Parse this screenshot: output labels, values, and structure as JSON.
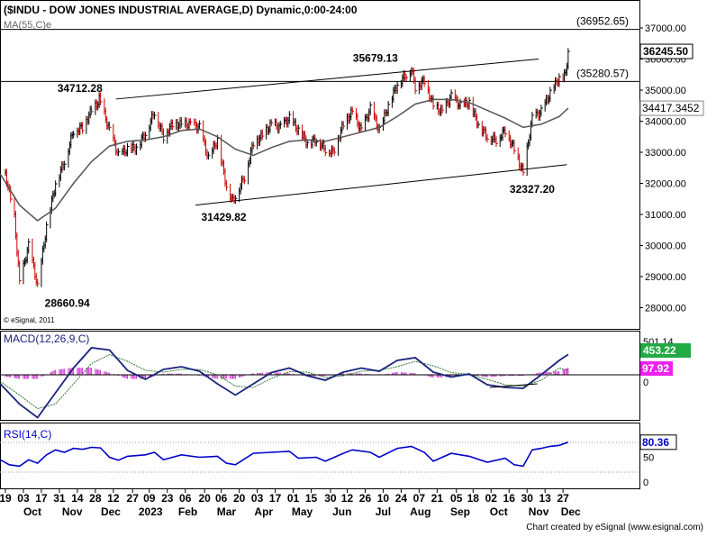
{
  "title": "($INDU - DOW JONES INDUSTRIAL AVERAGE,D) Dynamic,0:00-24:00",
  "ma_label": "MA(55,C)e",
  "copyright_small": "© eSignal, 2011",
  "footer": "Chart created by eSignal (www.esignal.com)",
  "colors": {
    "price_bar": "#000000",
    "bar_down": "#cc0000",
    "ma": "#555555",
    "macd": "#1a237e",
    "signal": "#2e7d32",
    "histogram": "#cc33cc",
    "rsi": "#0000cc",
    "last_label_bg": "#ffffff",
    "macd_label_bg": "#22aa44",
    "signal_label_bg": "#ee22ee"
  },
  "price_panel": {
    "y_ticks": [
      "37000.00",
      "36000.00",
      "35000.00",
      "34000.00",
      "33000.00",
      "32000.00",
      "31000.00",
      "30000.00",
      "29000.00",
      "28000.00"
    ],
    "levels": [
      {
        "value": 36952.65,
        "label": "(36952.65)"
      },
      {
        "value": 35280.57,
        "label": "(35280.57)"
      }
    ],
    "last_price_label": "36245.50",
    "ma_value_label": "34417.3452",
    "annotations": [
      "34712.28",
      "35679.13",
      "31429.82",
      "32327.20",
      "28660.94"
    ],
    "trendlines": [
      {
        "from": [
          "Dec 14",
          34712
        ],
        "to": [
          "Nov 08",
          36000
        ]
      },
      {
        "from": [
          "Feb 14",
          31300
        ],
        "to": [
          "Nov 30",
          32600
        ]
      }
    ]
  },
  "macd_panel": {
    "label": "MACD(12,26,9,C)",
    "macd_value": "453.22",
    "signal_value": "97.92",
    "macd_top_label": "501.14",
    "zero_label": "0"
  },
  "rsi_panel": {
    "label": "RSI(14,C)",
    "value": "80.36",
    "y_ticks": [
      "50",
      "0"
    ]
  },
  "x_axis": {
    "day_ticks": [
      "19",
      "03",
      "17",
      "31",
      "14",
      "28",
      "12",
      "27",
      "09",
      "23",
      "06",
      "20",
      "06",
      "20",
      "03",
      "17",
      "01",
      "15",
      "30",
      "12",
      "26",
      "10",
      "24",
      "07",
      "21",
      "05",
      "18",
      "02",
      "16",
      "30",
      "13",
      "27"
    ],
    "month_ticks": [
      "Oct",
      "Nov",
      "Dec",
      "2023",
      "Feb",
      "Mar",
      "Apr",
      "May",
      "Jun",
      "Jul",
      "Aug",
      "Sep",
      "Oct",
      "Nov",
      "Dec"
    ]
  },
  "chart_data": {
    "type": "line",
    "title": "($INDU - DOW JONES INDUSTRIAL AVERAGE,D) Dynamic,0:00-24:00",
    "x_range": [
      "2022-09-15",
      "2023-12-01"
    ],
    "ylim": [
      27500,
      37500
    ],
    "series": [
      {
        "name": "$INDU",
        "points": [
          [
            "2022-09-19",
            32300
          ],
          [
            "2022-09-26",
            30900
          ],
          [
            "2022-09-30",
            28800
          ],
          [
            "2022-10-07",
            30000
          ],
          [
            "2022-10-12",
            29100
          ],
          [
            "2022-10-14",
            28660
          ],
          [
            "2022-10-21",
            30600
          ],
          [
            "2022-10-28",
            32000
          ],
          [
            "2022-11-04",
            32700
          ],
          [
            "2022-11-11",
            33700
          ],
          [
            "2022-11-18",
            33800
          ],
          [
            "2022-11-25",
            34350
          ],
          [
            "2022-11-30",
            34600
          ],
          [
            "2022-12-01",
            34712
          ],
          [
            "2022-12-09",
            33700
          ],
          [
            "2022-12-16",
            32900
          ],
          [
            "2022-12-23",
            33100
          ],
          [
            "2022-12-30",
            33150
          ],
          [
            "2023-01-06",
            33600
          ],
          [
            "2023-01-13",
            34300
          ],
          [
            "2023-01-20",
            33500
          ],
          [
            "2023-01-27",
            33900
          ],
          [
            "2023-02-03",
            33900
          ],
          [
            "2023-02-10",
            33900
          ],
          [
            "2023-02-17",
            33800
          ],
          [
            "2023-02-24",
            32800
          ],
          [
            "2023-03-03",
            33400
          ],
          [
            "2023-03-10",
            31900
          ],
          [
            "2023-03-15",
            31429
          ],
          [
            "2023-03-24",
            32200
          ],
          [
            "2023-03-31",
            33300
          ],
          [
            "2023-04-06",
            33500
          ],
          [
            "2023-04-14",
            33900
          ],
          [
            "2023-04-21",
            33800
          ],
          [
            "2023-04-28",
            34100
          ],
          [
            "2023-05-05",
            33700
          ],
          [
            "2023-05-12",
            33300
          ],
          [
            "2023-05-19",
            33400
          ],
          [
            "2023-05-26",
            33100
          ],
          [
            "2023-06-01",
            33000
          ],
          [
            "2023-06-09",
            33900
          ],
          [
            "2023-06-16",
            34300
          ],
          [
            "2023-06-23",
            33700
          ],
          [
            "2023-06-30",
            34400
          ],
          [
            "2023-07-07",
            33700
          ],
          [
            "2023-07-14",
            34500
          ],
          [
            "2023-07-21",
            35200
          ],
          [
            "2023-07-28",
            35500
          ],
          [
            "2023-08-01",
            35679
          ],
          [
            "2023-08-04",
            35100
          ],
          [
            "2023-08-11",
            35300
          ],
          [
            "2023-08-18",
            34500
          ],
          [
            "2023-08-25",
            34300
          ],
          [
            "2023-09-01",
            34800
          ],
          [
            "2023-09-08",
            34500
          ],
          [
            "2023-09-15",
            34600
          ],
          [
            "2023-09-22",
            33900
          ],
          [
            "2023-09-29",
            33500
          ],
          [
            "2023-10-06",
            33400
          ],
          [
            "2023-10-13",
            33700
          ],
          [
            "2023-10-20",
            33100
          ],
          [
            "2023-10-27",
            32327
          ],
          [
            "2023-11-03",
            34100
          ],
          [
            "2023-11-10",
            34300
          ],
          [
            "2023-11-17",
            34900
          ],
          [
            "2023-11-24",
            35400
          ],
          [
            "2023-11-29",
            35500
          ],
          [
            "2023-12-01",
            36245
          ]
        ]
      },
      {
        "name": "MA(55,C)e",
        "points": [
          [
            "2022-09-15",
            32300
          ],
          [
            "2022-09-30",
            31300
          ],
          [
            "2022-10-14",
            30800
          ],
          [
            "2022-10-28",
            31200
          ],
          [
            "2022-11-11",
            32000
          ],
          [
            "2022-11-25",
            32700
          ],
          [
            "2022-12-09",
            33200
          ],
          [
            "2022-12-23",
            33350
          ],
          [
            "2023-01-06",
            33400
          ],
          [
            "2023-01-20",
            33500
          ],
          [
            "2023-02-03",
            33700
          ],
          [
            "2023-02-17",
            33750
          ],
          [
            "2023-03-03",
            33500
          ],
          [
            "2023-03-17",
            33100
          ],
          [
            "2023-03-31",
            32900
          ],
          [
            "2023-04-14",
            33150
          ],
          [
            "2023-04-28",
            33350
          ],
          [
            "2023-05-12",
            33400
          ],
          [
            "2023-05-26",
            33350
          ],
          [
            "2023-06-09",
            33500
          ],
          [
            "2023-06-23",
            33650
          ],
          [
            "2023-07-07",
            33800
          ],
          [
            "2023-07-21",
            34150
          ],
          [
            "2023-08-04",
            34550
          ],
          [
            "2023-08-18",
            34700
          ],
          [
            "2023-09-01",
            34700
          ],
          [
            "2023-09-15",
            34600
          ],
          [
            "2023-09-29",
            34350
          ],
          [
            "2023-10-13",
            34100
          ],
          [
            "2023-10-27",
            33800
          ],
          [
            "2023-11-10",
            33900
          ],
          [
            "2023-11-24",
            34150
          ],
          [
            "2023-12-01",
            34417
          ]
        ]
      },
      {
        "name": "MACD",
        "points": [
          [
            "2022-09-15",
            -200
          ],
          [
            "2022-09-30",
            -650
          ],
          [
            "2022-10-14",
            -950
          ],
          [
            "2022-10-28",
            -400
          ],
          [
            "2022-11-11",
            150
          ],
          [
            "2022-11-25",
            600
          ],
          [
            "2022-12-09",
            550
          ],
          [
            "2022-12-23",
            100
          ],
          [
            "2023-01-06",
            -100
          ],
          [
            "2023-01-20",
            120
          ],
          [
            "2023-02-03",
            180
          ],
          [
            "2023-02-17",
            80
          ],
          [
            "2023-03-03",
            -200
          ],
          [
            "2023-03-17",
            -450
          ],
          [
            "2023-03-31",
            -200
          ],
          [
            "2023-04-14",
            50
          ],
          [
            "2023-04-28",
            150
          ],
          [
            "2023-05-12",
            -20
          ],
          [
            "2023-05-26",
            -120
          ],
          [
            "2023-06-09",
            60
          ],
          [
            "2023-06-23",
            150
          ],
          [
            "2023-07-07",
            80
          ],
          [
            "2023-07-21",
            320
          ],
          [
            "2023-08-04",
            380
          ],
          [
            "2023-08-18",
            60
          ],
          [
            "2023-09-01",
            -50
          ],
          [
            "2023-09-15",
            20
          ],
          [
            "2023-09-29",
            -220
          ],
          [
            "2023-10-13",
            -280
          ],
          [
            "2023-10-27",
            -300
          ],
          [
            "2023-11-10",
            0
          ],
          [
            "2023-11-24",
            320
          ],
          [
            "2023-12-01",
            453
          ]
        ]
      },
      {
        "name": "Signal",
        "points": [
          [
            "2022-09-15",
            -150
          ],
          [
            "2022-09-30",
            -450
          ],
          [
            "2022-10-14",
            -750
          ],
          [
            "2022-10-28",
            -650
          ],
          [
            "2022-11-11",
            -200
          ],
          [
            "2022-11-25",
            250
          ],
          [
            "2022-12-09",
            450
          ],
          [
            "2022-12-23",
            300
          ],
          [
            "2023-01-06",
            100
          ],
          [
            "2023-01-20",
            60
          ],
          [
            "2023-02-03",
            120
          ],
          [
            "2023-02-17",
            120
          ],
          [
            "2023-03-03",
            0
          ],
          [
            "2023-03-17",
            -250
          ],
          [
            "2023-03-31",
            -280
          ],
          [
            "2023-04-14",
            -80
          ],
          [
            "2023-04-28",
            70
          ],
          [
            "2023-05-12",
            60
          ],
          [
            "2023-05-26",
            -60
          ],
          [
            "2023-06-09",
            -20
          ],
          [
            "2023-06-23",
            80
          ],
          [
            "2023-07-07",
            100
          ],
          [
            "2023-07-21",
            180
          ],
          [
            "2023-08-04",
            300
          ],
          [
            "2023-08-18",
            200
          ],
          [
            "2023-09-01",
            50
          ],
          [
            "2023-09-15",
            10
          ],
          [
            "2023-09-29",
            -100
          ],
          [
            "2023-10-13",
            -220
          ],
          [
            "2023-10-27",
            -250
          ],
          [
            "2023-11-10",
            -120
          ],
          [
            "2023-11-24",
            150
          ],
          [
            "2023-12-01",
            98
          ]
        ]
      },
      {
        "name": "RSI(14,C)",
        "points": [
          [
            "2022-09-15",
            45
          ],
          [
            "2022-09-22",
            35
          ],
          [
            "2022-09-30",
            32
          ],
          [
            "2022-10-07",
            45
          ],
          [
            "2022-10-14",
            38
          ],
          [
            "2022-10-21",
            55
          ],
          [
            "2022-10-28",
            65
          ],
          [
            "2022-11-04",
            60
          ],
          [
            "2022-11-11",
            68
          ],
          [
            "2022-11-18",
            66
          ],
          [
            "2022-11-25",
            70
          ],
          [
            "2022-12-02",
            69
          ],
          [
            "2022-12-09",
            50
          ],
          [
            "2022-12-16",
            44
          ],
          [
            "2022-12-23",
            52
          ],
          [
            "2023-01-06",
            55
          ],
          [
            "2023-01-13",
            60
          ],
          [
            "2023-01-20",
            45
          ],
          [
            "2023-02-03",
            55
          ],
          [
            "2023-02-17",
            50
          ],
          [
            "2023-03-03",
            52
          ],
          [
            "2023-03-10",
            38
          ],
          [
            "2023-03-17",
            35
          ],
          [
            "2023-03-31",
            58
          ],
          [
            "2023-04-14",
            60
          ],
          [
            "2023-04-28",
            62
          ],
          [
            "2023-05-05",
            48
          ],
          [
            "2023-05-19",
            50
          ],
          [
            "2023-05-26",
            42
          ],
          [
            "2023-06-09",
            58
          ],
          [
            "2023-06-16",
            65
          ],
          [
            "2023-06-30",
            60
          ],
          [
            "2023-07-07",
            50
          ],
          [
            "2023-07-21",
            68
          ],
          [
            "2023-08-01",
            72
          ],
          [
            "2023-08-11",
            60
          ],
          [
            "2023-08-18",
            42
          ],
          [
            "2023-09-01",
            58
          ],
          [
            "2023-09-15",
            52
          ],
          [
            "2023-09-29",
            40
          ],
          [
            "2023-10-13",
            48
          ],
          [
            "2023-10-20",
            35
          ],
          [
            "2023-10-27",
            32
          ],
          [
            "2023-11-03",
            65
          ],
          [
            "2023-11-10",
            68
          ],
          [
            "2023-11-17",
            72
          ],
          [
            "2023-11-24",
            74
          ],
          [
            "2023-12-01",
            80.36
          ]
        ]
      }
    ]
  }
}
